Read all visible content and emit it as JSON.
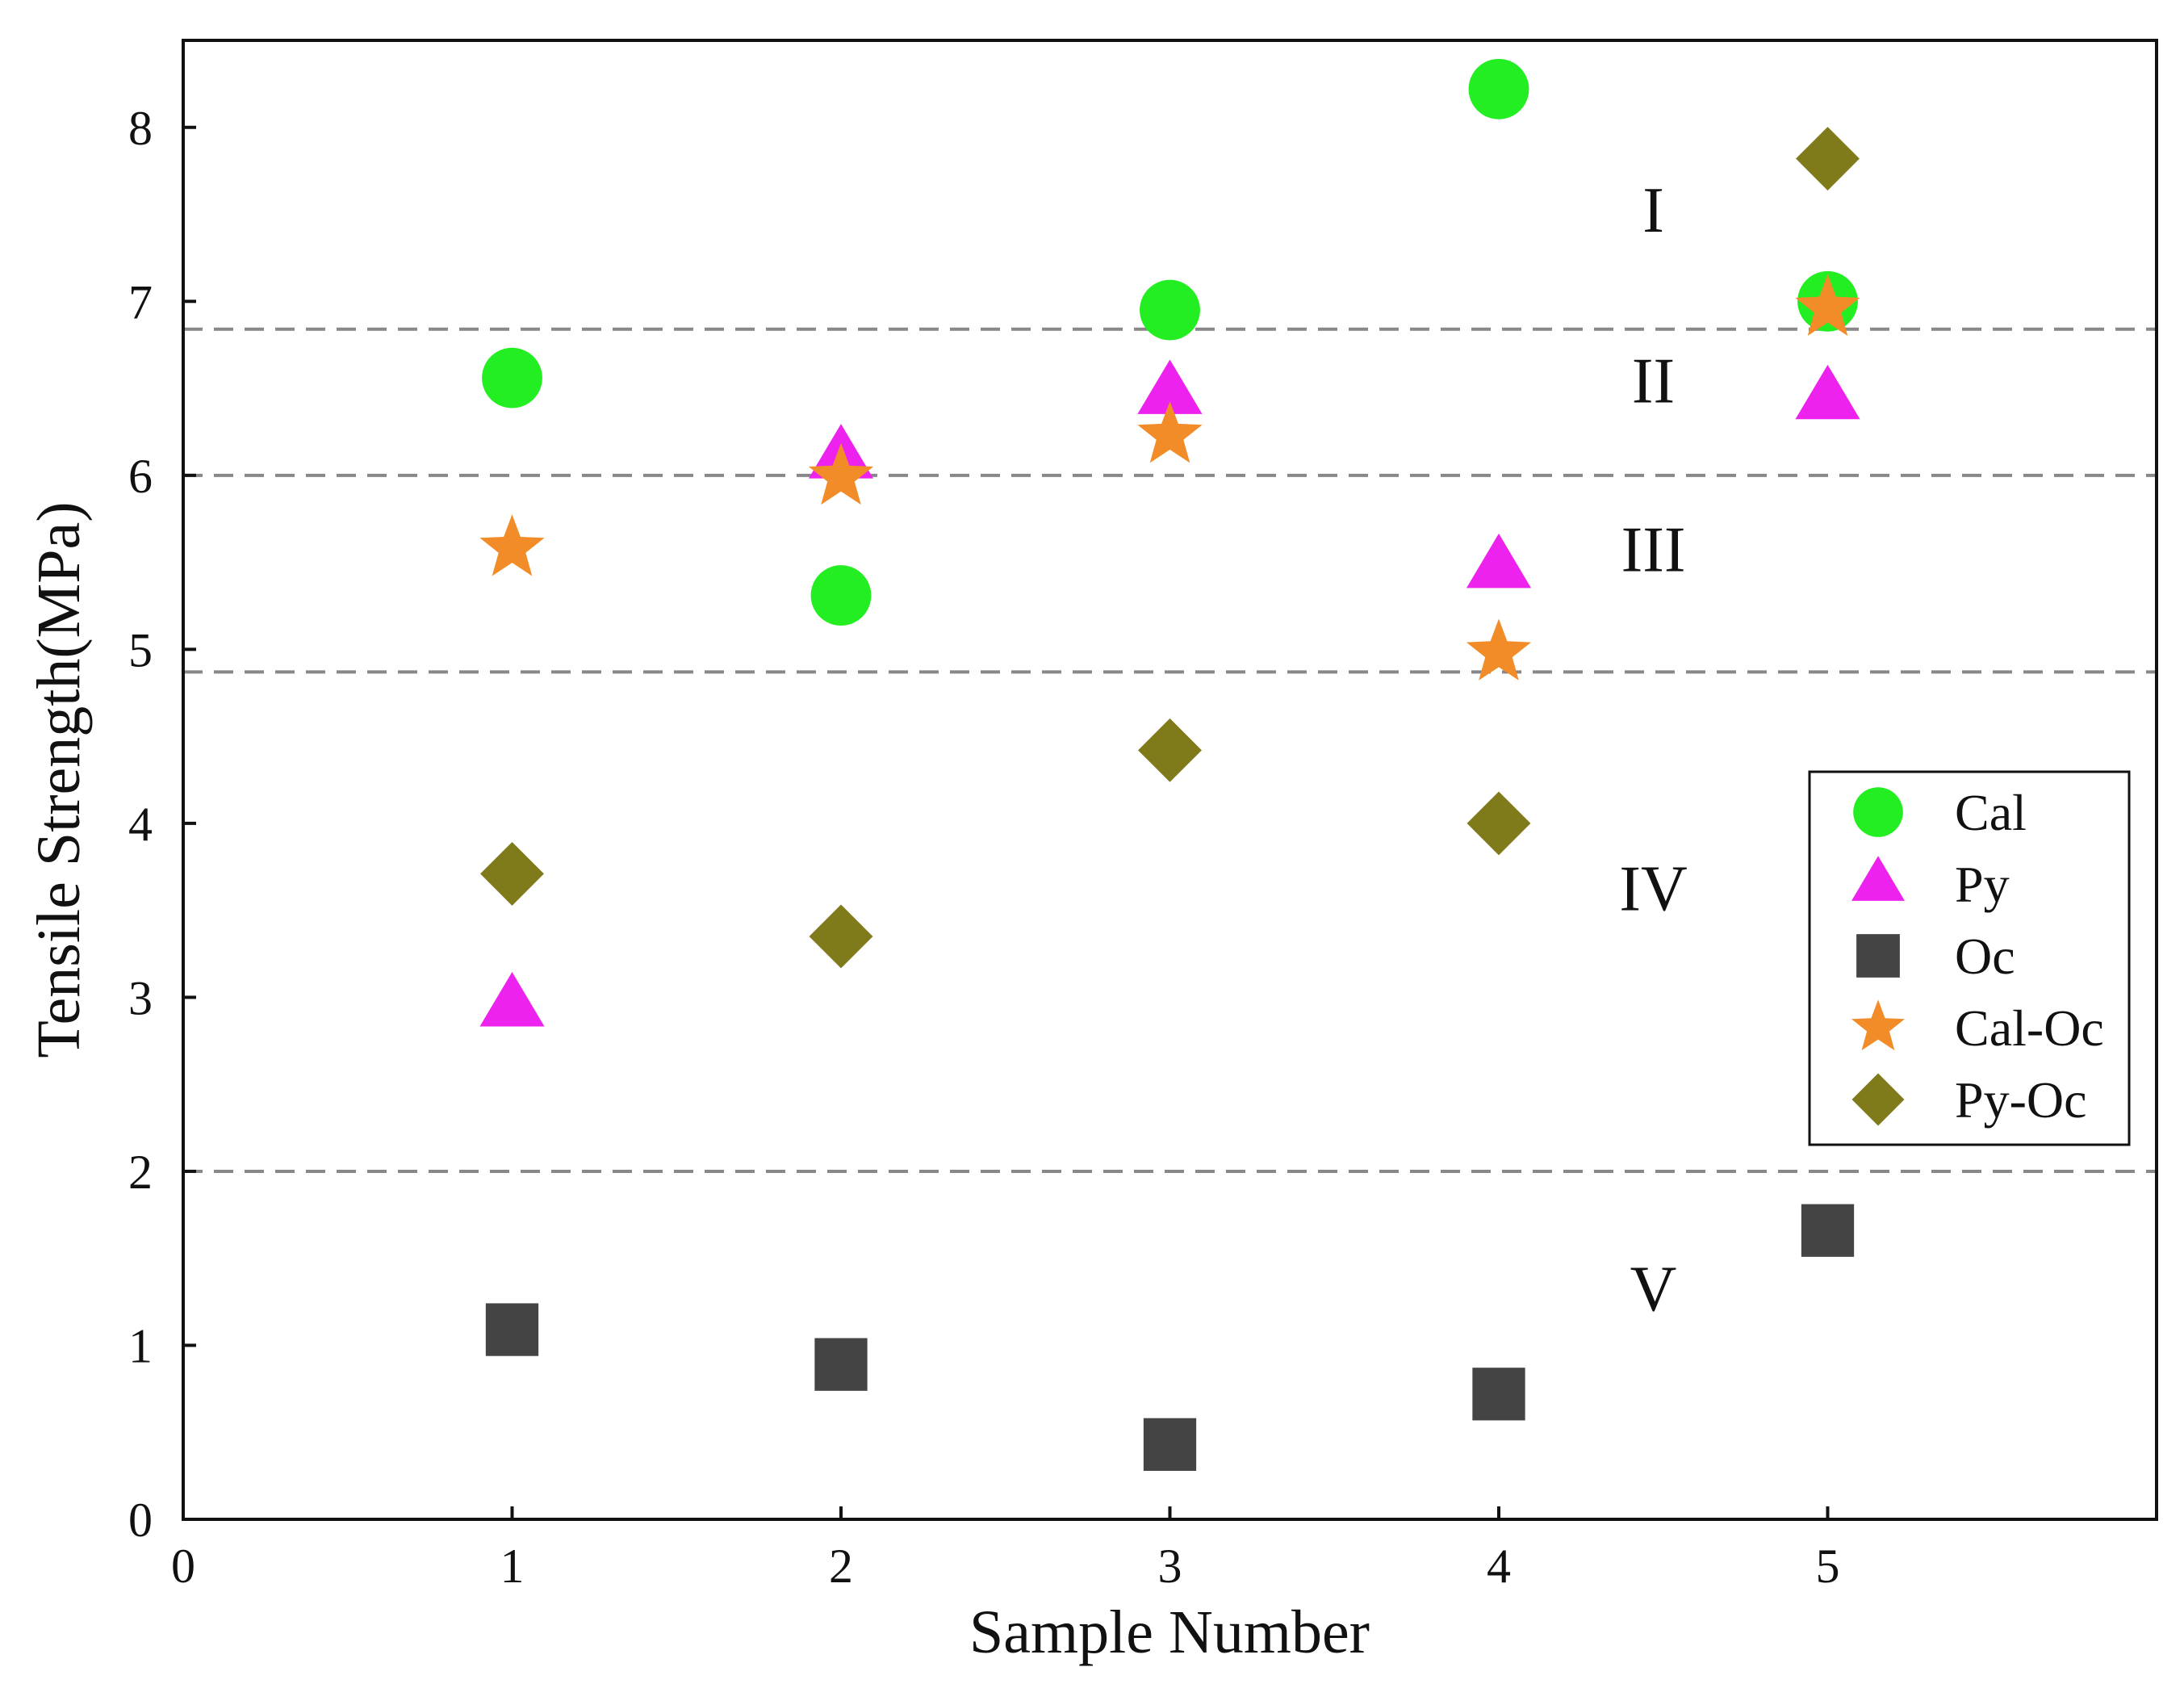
{
  "chart_data": {
    "type": "scatter",
    "xlabel": "Sample Number",
    "ylabel": "Tensile Strength(MPa)",
    "xlim": [
      0,
      6
    ],
    "ylim": [
      0,
      8.5
    ],
    "xticks": [
      0,
      1,
      2,
      3,
      4,
      5
    ],
    "yticks": [
      0,
      1,
      2,
      3,
      4,
      5,
      6,
      7,
      8
    ],
    "xtick_labels": [
      "0",
      "1",
      "2",
      "3",
      "4",
      "5"
    ],
    "ytick_labels": [
      "0",
      "1",
      "2",
      "3",
      "4",
      "5",
      "6",
      "7",
      "8"
    ],
    "legend_position": "right",
    "series": [
      {
        "name": "Cal",
        "marker": "circle",
        "color": "#22ee22",
        "x": [
          1,
          2,
          3,
          4,
          5
        ],
        "values": [
          6.56,
          5.31,
          6.95,
          8.22,
          7.0
        ]
      },
      {
        "name": "Py",
        "marker": "triangle",
        "color": "#ee22ee",
        "x": [
          1,
          2,
          3,
          4,
          5
        ],
        "values": [
          2.95,
          6.1,
          6.47,
          5.47,
          6.44
        ]
      },
      {
        "name": "Oc",
        "marker": "square",
        "color": "#444444",
        "x": [
          1,
          2,
          3,
          4,
          5
        ],
        "values": [
          1.09,
          0.89,
          0.43,
          0.72,
          1.66
        ]
      },
      {
        "name": "Cal-Oc",
        "marker": "star",
        "color": "#f28c28",
        "x": [
          1,
          2,
          3,
          4,
          5
        ],
        "values": [
          5.58,
          5.99,
          6.23,
          4.98,
          6.96
        ]
      },
      {
        "name": "Py-Oc",
        "marker": "diamond",
        "color": "#7f7a1a",
        "x": [
          1,
          2,
          3,
          4,
          5
        ],
        "values": [
          3.71,
          3.35,
          4.42,
          4.0,
          7.82
        ]
      }
    ],
    "thresholds": [
      6.84,
      6.0,
      4.87,
      2.0
    ],
    "threshold_color": "#888888",
    "regions": [
      {
        "label": "I",
        "y": 7.4
      },
      {
        "label": "II",
        "y": 6.42
      },
      {
        "label": "III",
        "y": 5.45
      },
      {
        "label": "IV",
        "y": 3.5
      },
      {
        "label": "V",
        "y": 1.2
      }
    ],
    "region_label_x": 4.47
  }
}
